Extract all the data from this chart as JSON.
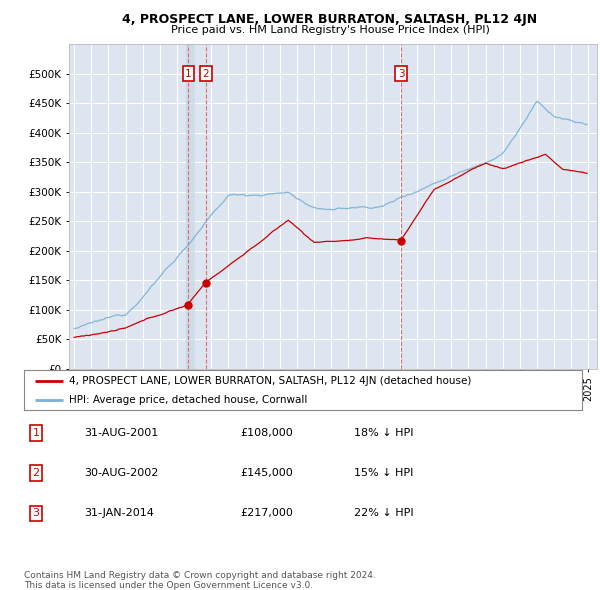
{
  "title": "4, PROSPECT LANE, LOWER BURRATON, SALTASH, PL12 4JN",
  "subtitle": "Price paid vs. HM Land Registry's House Price Index (HPI)",
  "legend_line1": "4, PROSPECT LANE, LOWER BURRATON, SALTASH, PL12 4JN (detached house)",
  "legend_line2": "HPI: Average price, detached house, Cornwall",
  "footer1": "Contains HM Land Registry data © Crown copyright and database right 2024.",
  "footer2": "This data is licensed under the Open Government Licence v3.0.",
  "transactions": [
    {
      "num": 1,
      "date": "31-AUG-2001",
      "price": "£108,000",
      "note": "18% ↓ HPI",
      "year_x": 2001.67
    },
    {
      "num": 2,
      "date": "30-AUG-2002",
      "price": "£145,000",
      "note": "15% ↓ HPI",
      "year_x": 2002.67
    },
    {
      "num": 3,
      "date": "31-JAN-2014",
      "price": "£217,000",
      "note": "22% ↓ HPI",
      "year_x": 2014.08
    }
  ],
  "trans_prices": [
    108000,
    145000,
    217000
  ],
  "ylim": [
    0,
    550000
  ],
  "xlim_start": 1994.7,
  "xlim_end": 2025.5,
  "background_color": "#ffffff",
  "plot_bg_color": "#dde6f0",
  "grid_color": "#ffffff",
  "red_line_color": "#cc0000",
  "blue_line_color": "#7ab0d4",
  "transaction_marker_color": "#cc0000",
  "vline_color": "#e06060",
  "box_color": "#cc0000",
  "highlight_color": "#c8d8e8"
}
